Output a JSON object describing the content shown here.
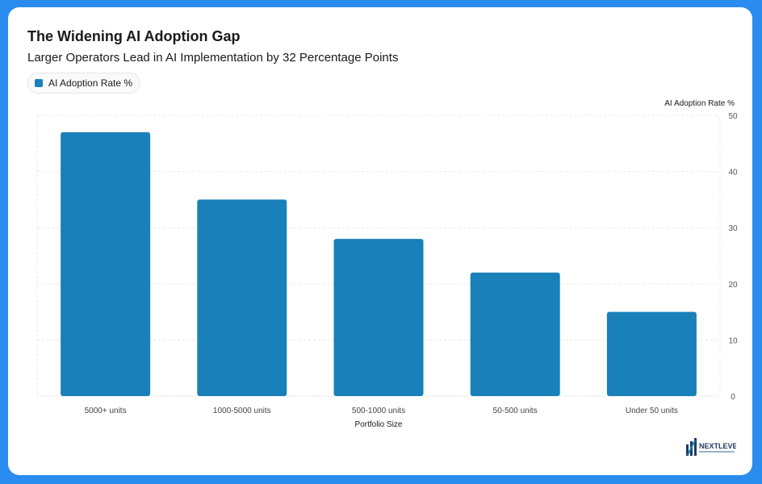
{
  "chart_data": {
    "type": "bar",
    "title": "The Widening AI Adoption Gap",
    "subtitle": "Larger Operators Lead in AI Implementation by 32 Percentage Points",
    "categories": [
      "5000+ units",
      "1000-5000 units",
      "500-1000 units",
      "50-500 units",
      "Under 50 units"
    ],
    "series": [
      {
        "name": "AI Adoption Rate %",
        "values": [
          47,
          35,
          28,
          22,
          15
        ]
      }
    ],
    "xlabel": "Portfolio Size",
    "ylabel": "AI Adoption Rate %",
    "ylim": [
      0,
      50
    ],
    "yticks": [
      0,
      10,
      20,
      30,
      40,
      50
    ],
    "y_axis_side": "right",
    "grid": true,
    "legend_position": "top-left",
    "bar_color": "#1a80b9"
  },
  "branding": {
    "logo_text": "NEXTLEVEL"
  }
}
